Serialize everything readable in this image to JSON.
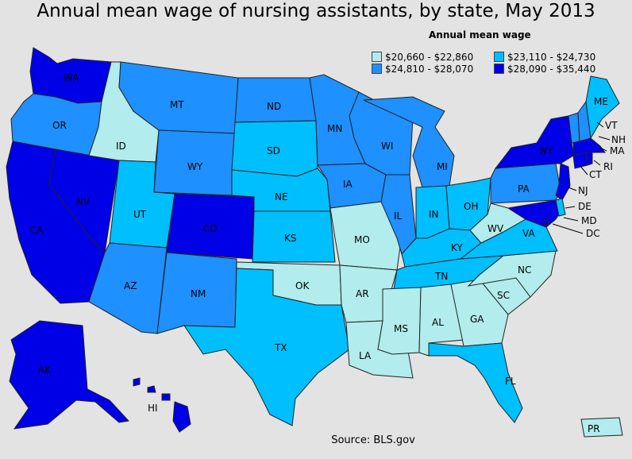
{
  "title": "Annual mean wage of nursing assistants, by state, May 2013",
  "source": "Source: BLS.gov",
  "legend": {
    "title": "Annual mean wage",
    "items": [
      {
        "label": "$20,660 - $22,860",
        "color": "#b2ecec"
      },
      {
        "label": "$23,110 - $24,730",
        "color": "#00bfff"
      },
      {
        "label": "$24,810 - $28,070",
        "color": "#1e90ff"
      },
      {
        "label": "$28,090 - $35,440",
        "color": "#0000e6"
      }
    ]
  },
  "states": {
    "WA": "WA",
    "OR": "OR",
    "CA": "CA",
    "NV": "NV",
    "ID": "ID",
    "MT": "MT",
    "WY": "WY",
    "UT": "UT",
    "AZ": "AZ",
    "CO": "CO",
    "NM": "NM",
    "ND": "ND",
    "SD": "SD",
    "NE": "NE",
    "KS": "KS",
    "OK": "OK",
    "TX": "TX",
    "MN": "MN",
    "IA": "IA",
    "MO": "MO",
    "AR": "AR",
    "LA": "LA",
    "WI": "WI",
    "IL": "IL",
    "MI": "MI",
    "IN": "IN",
    "OH": "OH",
    "KY": "KY",
    "TN": "TN",
    "MS": "MS",
    "AL": "AL",
    "GA": "GA",
    "FL": "FL",
    "SC": "SC",
    "NC": "NC",
    "VA": "VA",
    "WV": "WV",
    "PA": "PA",
    "NY": "NY",
    "VT": "VT",
    "NH": "NH",
    "ME": "ME",
    "MA": "MA",
    "RI": "RI",
    "CT": "CT",
    "NJ": "NJ",
    "DE": "DE",
    "MD": "MD",
    "DC": "DC",
    "AK": "AK",
    "HI": "HI",
    "PR": "PR"
  }
}
